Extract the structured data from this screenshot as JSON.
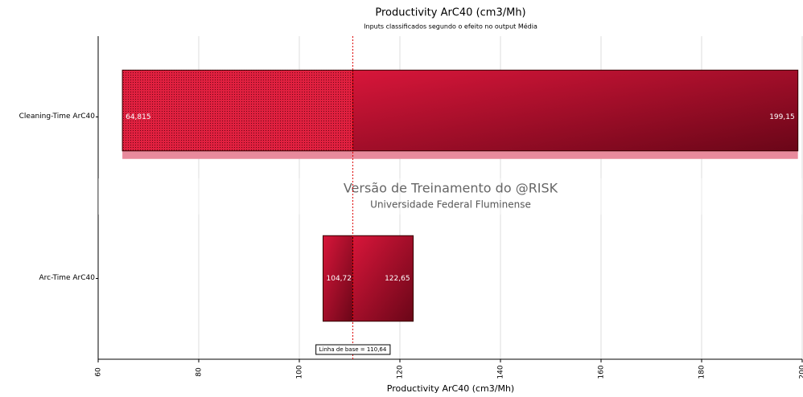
{
  "chart_data": {
    "type": "tornado",
    "title": "Productivity ArC40 (cm3/Mh)",
    "subtitle": "Inputs classificados segundo o efeito no output Média",
    "x_label": "Productivity ArC40 (cm3/Mh)",
    "categories": [
      "Cleaning-Time ArC40",
      "Arc-Time ArC40"
    ],
    "values": [
      [
        64.815,
        199.15
      ],
      [
        104.72,
        122.65
      ]
    ],
    "value_labels": [
      [
        "64,815",
        "199,15"
      ],
      [
        "104,72",
        "122,65"
      ]
    ],
    "baseline": {
      "value": 110.64,
      "label": "Linha de base = 110,64"
    },
    "xlim": [
      60,
      200
    ],
    "xticks": [
      60,
      80,
      100,
      120,
      140,
      160,
      180,
      200
    ],
    "grid": true,
    "color": "#c8102e",
    "watermark": [
      "Versão de Treinamento do @RISK",
      "Universidade Federal Fluminense"
    ]
  }
}
